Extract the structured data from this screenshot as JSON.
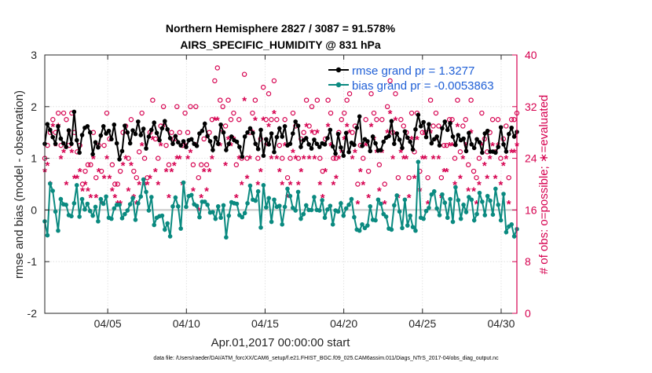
{
  "chart_data": {
    "type": "line",
    "title": "Northern Hemisphere 2827 / 3087 = 91.578%",
    "subtitle": "AIRS_SPECIFIC_HUMIDITY @ 831 hPa",
    "xlabel": "Apr.01,2017 00:00:00 start",
    "ylabel_left": "rmse and bias (model - observation)",
    "ylabel_right": "# of obs: o=possible; ∗=evaluated",
    "x_ticks": [
      "04/05",
      "04/10",
      "04/15",
      "04/20",
      "04/25",
      "04/30"
    ],
    "x_tick_days": [
      5,
      10,
      15,
      20,
      25,
      30
    ],
    "xlim": [
      1,
      31
    ],
    "ylim_left": [
      -2,
      3
    ],
    "y_ticks_left": [
      "-2",
      "-1",
      "0",
      "1",
      "2",
      "3"
    ],
    "ylim_right": [
      0,
      40
    ],
    "y_ticks_right": [
      "0",
      "8",
      "16",
      "24",
      "32",
      "40"
    ],
    "grid": true,
    "zero_line": true,
    "legend": [
      "rmse grand pr = 1.3277",
      "bias grand pr = -0.0053863"
    ],
    "legend_position": "top-right",
    "series": [
      {
        "name": "rmse",
        "color": "#000000",
        "values": [
          1.28,
          1.66,
          1.55,
          1.41,
          1.28,
          1.62,
          1.38,
          1.29,
          1.22,
          1.54,
          1.28,
          1.9,
          1.35,
          1.11,
          1.45,
          1.59,
          1.62,
          1.5,
          1.08,
          1.31,
          1.21,
          1.44,
          1.62,
          1.48,
          1.53,
          1.37,
          1.65,
          1.29,
          0.98,
          1.14,
          1.63,
          1.5,
          1.29,
          1.54,
          1.47,
          1.71,
          1.45,
          1.57,
          1.19,
          1.42,
          1.55,
          1.69,
          1.49,
          1.35,
          1.58,
          1.72,
          1.56,
          1.39,
          1.28,
          1.43,
          1.31,
          1.25,
          1.33,
          1.22,
          1.35,
          1.37,
          1.28,
          1.24,
          1.48,
          1.53,
          1.67,
          1.43,
          1.33,
          1.16,
          1.4,
          1.28,
          1.65,
          1.5,
          1.16,
          1.28,
          1.42,
          1.35,
          1.32,
          1.22,
          1.03,
          1.42,
          1.5,
          1.58,
          1.49,
          1.28,
          1.18,
          1.55,
          1.05,
          1.37,
          1.27,
          1.48,
          1.12,
          1.41,
          1.58,
          1.42,
          1.62,
          1.25,
          1.28,
          1.48,
          1.71,
          1.63,
          1.22,
          1.35,
          1.39,
          1.27,
          1.19,
          1.36,
          1.28,
          1.22,
          1.29,
          1.27,
          1.39,
          1.55,
          1.23,
          1.09,
          1.47,
          1.21,
          1.05,
          1.49,
          1.12,
          1.3,
          1.26,
          1.59,
          1.81,
          1.24,
          1.37,
          1.33,
          1.14,
          1.42,
          1.29,
          1.15,
          1.16,
          1.32,
          1.4,
          1.43,
          1.72,
          1.28,
          1.48,
          1.36,
          1.2,
          1.52,
          1.4,
          1.32,
          1.17,
          1.56,
          1.84,
          1.62,
          1.7,
          1.41,
          1.66,
          1.29,
          1.37,
          1.42,
          1.25,
          1.58,
          1.71,
          1.55,
          1.68,
          1.42,
          1.26,
          1.45,
          1.35,
          1.38,
          1.14,
          1.49,
          1.27,
          1.2,
          1.37,
          1.31,
          1.11,
          1.48,
          1.53,
          1.13,
          1.13,
          1.11,
          1.22,
          1.6,
          1.27,
          1.13,
          1.47,
          1.59,
          1.42,
          1.51
        ]
      },
      {
        "name": "bias",
        "color": "#0a8a80",
        "values": [
          -0.22,
          -0.49,
          0.51,
          0.37,
          -0.03,
          -0.4,
          0.21,
          0.11,
          0.1,
          -0.1,
          -0.12,
          0.13,
          0.48,
          -0.13,
          0.21,
          0.01,
          0.12,
          -0.02,
          -0.11,
          0.06,
          -0.22,
          0.21,
          0.12,
          0.26,
          -0.15,
          -0.17,
          0.03,
          0.1,
          0.1,
          -0.16,
          -0.08,
          -0.01,
          0.11,
          0.23,
          -0.19,
          0.13,
          0.26,
          0.59,
          0.35,
          -0.01,
          0.25,
          -0.29,
          -0.15,
          -0.12,
          -0.11,
          -0.38,
          -0.26,
          -0.51,
          0.07,
          0.24,
          0.07,
          -0.36,
          0.53,
          0.06,
          0.27,
          0.29,
          0.11,
          0.08,
          -0.14,
          0.16,
          0.16,
          0.1,
          -0.05,
          -0.04,
          -0.17,
          0.07,
          -0.15,
          0.09,
          -0.53,
          -0.11,
          0.15,
          0.13,
          0.12,
          -0.1,
          -0.14,
          -0.06,
          0.13,
          0.47,
          0.2,
          0.18,
          0.36,
          -0.34,
          0.48,
          0.05,
          0.23,
          -0.23,
          0.2,
          0.06,
          0.08,
          -0.28,
          0.06,
          0.41,
          0.27,
          0.04,
          -0.01,
          0.35,
          -0.17,
          -0.08,
          0.09,
          0.0,
          0.0,
          0.25,
          0.0,
          -0.01,
          0.19,
          -0.15,
          0.01,
          0.08,
          -0.28,
          -0.01,
          -0.03,
          0.13,
          -0.11,
          0.03,
          0.1,
          0.21,
          -0.14,
          -0.38,
          -0.4,
          -0.28,
          -0.35,
          -0.3,
          0.07,
          -0.19,
          -0.2,
          0.2,
          0.12,
          -0.08,
          -0.13,
          -0.36,
          -0.38,
          0.09,
          0.28,
          -0.03,
          -0.35,
          0.2,
          -0.3,
          -0.11,
          -0.33,
          -0.4,
          0.93,
          -0.15,
          -0.17,
          -0.02,
          0.04,
          0.3,
          0.36,
          0.03,
          -0.1,
          0.3,
          0.14,
          -0.15,
          0.21,
          -0.23,
          0.44,
          0.19,
          -0.17,
          0.1,
          -0.04,
          0.25,
          0.2,
          -0.2,
          -0.08,
          0.33,
          0.16,
          -0.1,
          0.27,
          0.18,
          -0.09,
          0.41,
          0.1,
          -0.2,
          0.31,
          -0.43,
          -0.32,
          -0.28,
          -0.51,
          -0.37
        ]
      }
    ],
    "obs_possible": {
      "marker": "o",
      "color": "#d6004f",
      "values": [
        24,
        26,
        28,
        30,
        28,
        31,
        26,
        31,
        30,
        26,
        31,
        28,
        25,
        26,
        20,
        22,
        23,
        23,
        28,
        21,
        26,
        22,
        26,
        31,
        27,
        23,
        20,
        20,
        22,
        28,
        29,
        24,
        30,
        22,
        21,
        25,
        31,
        24,
        21,
        28,
        33,
        27,
        24,
        29,
        32,
        26,
        23,
        28,
        27,
        32,
        28,
        26,
        31,
        28,
        32,
        23,
        32,
        21,
        23,
        27,
        23,
        28,
        30,
        36,
        38,
        33,
        32,
        29,
        33,
        30,
        31,
        23,
        30,
        24,
        37,
        24,
        28,
        31,
        33,
        24,
        27,
        35,
        30,
        34,
        30,
        36,
        30,
        26,
        24,
        30,
        21,
        24,
        31,
        29,
        24,
        27,
        28,
        33,
        29,
        32,
        28,
        33,
        24,
        22,
        27,
        33,
        31,
        24,
        24,
        28,
        30,
        31,
        33,
        34,
        28,
        29,
        20,
        26,
        24,
        30,
        22,
        34,
        31,
        30,
        23,
        30,
        20,
        32,
        36,
        28,
        34,
        21,
        30,
        29,
        28,
        21,
        31,
        25,
        31,
        22,
        28,
        28,
        21,
        33,
        29,
        31,
        29,
        21,
        26,
        26,
        30,
        30,
        24,
        33,
        25,
        29,
        30,
        23,
        33,
        22,
        21,
        24,
        31,
        27,
        25,
        28,
        30,
        25,
        30,
        24,
        27,
        29,
        21,
        30,
        30,
        31
      ]
    },
    "obs_evaluated": {
      "marker": "*",
      "color": "#d6004f",
      "values": [
        22,
        23,
        20,
        29,
        26,
        29,
        24,
        25,
        20,
        28,
        25,
        21,
        21,
        22,
        19,
        20,
        19,
        18,
        24,
        18,
        22,
        17,
        21,
        24,
        21,
        19,
        18,
        17,
        17,
        23,
        24,
        19,
        23,
        18,
        17,
        20,
        26,
        20,
        20,
        21,
        27,
        22,
        20,
        26,
        29,
        22,
        18,
        22,
        23,
        24,
        24,
        20,
        26,
        24,
        25,
        19,
        26,
        16,
        18,
        22,
        19,
        22,
        24,
        30,
        30,
        26,
        28,
        23,
        27,
        26,
        27,
        18,
        24,
        20,
        33,
        21,
        24,
        28,
        30,
        20,
        22,
        30,
        26,
        29,
        24,
        31,
        24,
        22,
        20,
        26,
        18,
        20,
        25,
        24,
        20,
        22,
        24,
        29,
        24,
        28,
        24,
        28,
        20,
        18,
        22,
        29,
        26,
        20,
        21,
        24,
        25,
        27,
        29,
        28,
        24,
        25,
        17,
        22,
        20,
        26,
        18,
        29,
        27,
        25,
        19,
        25,
        17,
        28,
        31,
        24,
        30,
        18,
        25,
        24,
        24,
        18,
        27,
        21,
        27,
        19,
        24,
        24,
        17,
        28,
        24,
        27,
        24,
        18,
        22,
        22,
        26,
        26,
        20,
        29,
        21,
        24,
        26,
        19,
        28,
        19,
        17,
        20,
        26,
        23,
        21,
        24,
        26,
        21,
        26,
        20,
        23,
        24,
        17,
        25,
        25,
        26
      ]
    }
  },
  "footer": "data file: /Users/raeder/DAI/ATM_forcXX/CAM6_setup/f.e21.FHIST_BGC.f09_025.CAM6assim.011/Diags_NTrS_2017-04/obs_diag_output.nc"
}
